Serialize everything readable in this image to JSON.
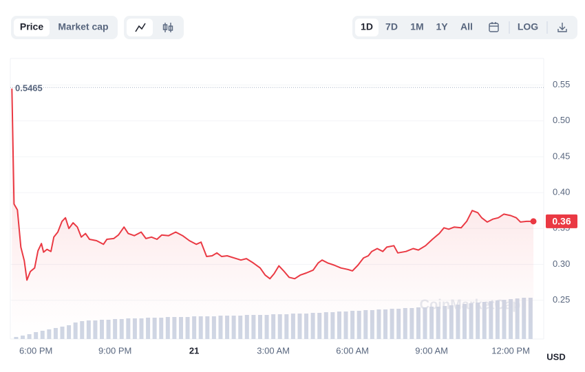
{
  "toolbar": {
    "tabs": [
      "Price",
      "Market cap"
    ],
    "ranges": [
      "1D",
      "7D",
      "1M",
      "1Y",
      "All"
    ],
    "log": "LOG"
  },
  "chart_data": {
    "type": "line",
    "color": "#ea3943",
    "grid": true,
    "xlim": [
      17.03,
      37.25
    ],
    "xticks": [
      {
        "value": 18,
        "label": "6:00 PM"
      },
      {
        "value": 21,
        "label": "9:00 PM"
      },
      {
        "value": 24,
        "label": "21"
      },
      {
        "value": 27,
        "label": "3:00 AM"
      },
      {
        "value": 30,
        "label": "6:00 AM"
      },
      {
        "value": 33,
        "label": "9:00 AM"
      },
      {
        "value": 36,
        "label": "12:00 PM"
      }
    ],
    "ylim": [
      0.196,
      0.587
    ],
    "yticks": [
      0.25,
      {
        "value": 0.3,
        "label": "0.30"
      },
      0.35,
      {
        "value": 0.4,
        "label": "0.40"
      },
      0.45,
      {
        "value": 0.5,
        "label": "0.50"
      },
      0.55
    ],
    "y_unit": "USD",
    "watermark": "CoinMarketCap",
    "high": 0.5465,
    "current_price": 0.36,
    "x": [
      17.09,
      17.17,
      17.3,
      17.43,
      17.56,
      17.66,
      17.79,
      17.95,
      18.08,
      18.21,
      18.29,
      18.42,
      18.57,
      18.68,
      18.83,
      18.99,
      19.12,
      19.25,
      19.41,
      19.57,
      19.72,
      19.88,
      20.03,
      20.3,
      20.56,
      20.69,
      20.95,
      21.13,
      21.34,
      21.5,
      21.73,
      21.99,
      22.17,
      22.38,
      22.59,
      22.77,
      23.03,
      23.3,
      23.56,
      23.82,
      24.08,
      24.26,
      24.47,
      24.68,
      24.86,
      25.04,
      25.25,
      25.51,
      25.77,
      25.98,
      26.24,
      26.5,
      26.69,
      26.87,
      27.03,
      27.21,
      27.39,
      27.6,
      27.81,
      28.02,
      28.25,
      28.51,
      28.7,
      28.85,
      29.06,
      29.3,
      29.56,
      29.82,
      30.0,
      30.21,
      30.42,
      30.6,
      30.73,
      30.94,
      31.15,
      31.3,
      31.57,
      31.72,
      32.03,
      32.3,
      32.5,
      32.77,
      33.03,
      33.29,
      33.47,
      33.65,
      33.86,
      34.12,
      34.33,
      34.54,
      34.75,
      34.9,
      35.11,
      35.32,
      35.53,
      35.74,
      36.0,
      36.21,
      36.37,
      36.6,
      36.86
    ],
    "values": [
      0.545,
      0.384,
      0.376,
      0.324,
      0.305,
      0.278,
      0.29,
      0.295,
      0.319,
      0.329,
      0.317,
      0.321,
      0.318,
      0.338,
      0.345,
      0.36,
      0.365,
      0.35,
      0.358,
      0.352,
      0.338,
      0.343,
      0.335,
      0.333,
      0.328,
      0.335,
      0.336,
      0.341,
      0.352,
      0.343,
      0.34,
      0.345,
      0.336,
      0.338,
      0.335,
      0.341,
      0.34,
      0.345,
      0.34,
      0.333,
      0.328,
      0.331,
      0.311,
      0.312,
      0.316,
      0.311,
      0.312,
      0.309,
      0.306,
      0.308,
      0.302,
      0.295,
      0.285,
      0.28,
      0.287,
      0.298,
      0.291,
      0.282,
      0.28,
      0.285,
      0.288,
      0.292,
      0.302,
      0.306,
      0.302,
      0.299,
      0.295,
      0.293,
      0.291,
      0.299,
      0.309,
      0.312,
      0.318,
      0.322,
      0.318,
      0.324,
      0.326,
      0.316,
      0.318,
      0.322,
      0.32,
      0.326,
      0.335,
      0.343,
      0.351,
      0.349,
      0.352,
      0.351,
      0.36,
      0.375,
      0.372,
      0.365,
      0.359,
      0.363,
      0.365,
      0.37,
      0.368,
      0.365,
      0.359,
      0.36,
      0.36
    ],
    "volume": {
      "color": "#cfd6e4",
      "x": [
        17.25,
        17.5,
        17.75,
        18,
        18.25,
        18.5,
        18.75,
        19,
        19.25,
        19.5,
        19.75,
        20,
        20.25,
        20.5,
        20.75,
        21,
        21.25,
        21.5,
        21.75,
        22,
        22.25,
        22.5,
        22.75,
        23,
        23.25,
        23.5,
        23.75,
        24,
        24.25,
        24.5,
        24.75,
        25,
        25.25,
        25.5,
        25.75,
        26,
        26.25,
        26.5,
        26.75,
        27,
        27.25,
        27.5,
        27.75,
        28,
        28.25,
        28.5,
        28.75,
        29,
        29.25,
        29.5,
        29.75,
        30,
        30.25,
        30.5,
        30.75,
        31,
        31.25,
        31.5,
        31.75,
        32,
        32.25,
        32.5,
        32.75,
        33,
        33.25,
        33.5,
        33.75,
        34,
        34.25,
        34.5,
        34.75,
        35,
        35.25,
        35.5,
        35.75,
        36,
        36.25,
        36.5,
        36.75
      ],
      "values": [
        3,
        5,
        7,
        10,
        12,
        14,
        16,
        18,
        20,
        24,
        26,
        27,
        27,
        28,
        28,
        29,
        29,
        30,
        30,
        30,
        31,
        31,
        31,
        32,
        32,
        32,
        32,
        33,
        33,
        33,
        33,
        34,
        34,
        34,
        34,
        35,
        35,
        35,
        35,
        36,
        36,
        36,
        37,
        37,
        37,
        38,
        38,
        39,
        39,
        40,
        40,
        41,
        41,
        42,
        42,
        43,
        43,
        44,
        44,
        45,
        45,
        46,
        46,
        47,
        47,
        48,
        49,
        50,
        51,
        52,
        53,
        54,
        55,
        56,
        57,
        58,
        59,
        60,
        60
      ]
    }
  }
}
